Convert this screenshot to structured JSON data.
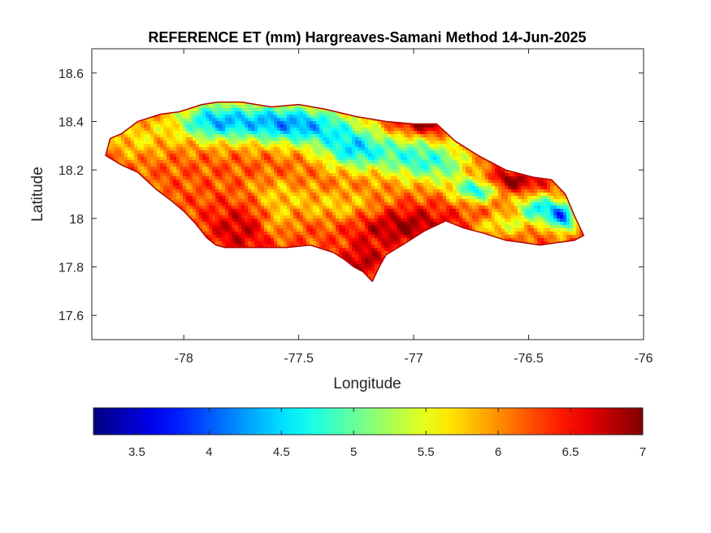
{
  "chart_data": {
    "type": "heatmap",
    "title": "REFERENCE ET (mm) Hargreaves-Samani Method  14-Jun-2025",
    "xlabel": "Longitude",
    "ylabel": "Latitude",
    "xlim": [
      -78.4,
      -76
    ],
    "ylim": [
      17.5,
      18.7
    ],
    "xticks": [
      -78,
      -77.5,
      -77,
      -76.5,
      -76
    ],
    "xtick_labels": [
      "-78",
      "-77.5",
      "-77",
      "-76.5",
      "-76"
    ],
    "yticks": [
      17.6,
      17.8,
      18,
      18.2,
      18.4,
      18.6
    ],
    "ytick_labels": [
      "17.6",
      "17.8",
      "18",
      "18.2",
      "18.4",
      "18.6"
    ],
    "grid": false,
    "colormap": "jet",
    "colorbar": {
      "orientation": "horizontal",
      "placement": "bottom",
      "range": [
        3.2,
        7
      ],
      "ticks": [
        3.5,
        4,
        4.5,
        5,
        5.5,
        6,
        6.5,
        7
      ],
      "tick_labels": [
        "3.5",
        "4",
        "4.5",
        "5",
        "5.5",
        "6",
        "6.5",
        "7"
      ]
    },
    "outline": [
      [
        -78.34,
        18.26
      ],
      [
        -78.32,
        18.33
      ],
      [
        -78.27,
        18.35
      ],
      [
        -78.2,
        18.4
      ],
      [
        -78.1,
        18.43
      ],
      [
        -78.02,
        18.44
      ],
      [
        -77.92,
        18.47
      ],
      [
        -77.85,
        18.48
      ],
      [
        -77.75,
        18.48
      ],
      [
        -77.62,
        18.46
      ],
      [
        -77.5,
        18.47
      ],
      [
        -77.38,
        18.45
      ],
      [
        -77.25,
        18.42
      ],
      [
        -77.12,
        18.4
      ],
      [
        -77.0,
        18.39
      ],
      [
        -76.9,
        18.39
      ],
      [
        -76.82,
        18.32
      ],
      [
        -76.72,
        18.26
      ],
      [
        -76.6,
        18.2
      ],
      [
        -76.48,
        18.17
      ],
      [
        -76.4,
        18.16
      ],
      [
        -76.34,
        18.1
      ],
      [
        -76.3,
        18.01
      ],
      [
        -76.26,
        17.93
      ],
      [
        -76.3,
        17.91
      ],
      [
        -76.38,
        17.9
      ],
      [
        -76.45,
        17.89
      ],
      [
        -76.52,
        17.9
      ],
      [
        -76.6,
        17.91
      ],
      [
        -76.7,
        17.94
      ],
      [
        -76.78,
        17.96
      ],
      [
        -76.86,
        17.99
      ],
      [
        -76.95,
        17.95
      ],
      [
        -77.05,
        17.89
      ],
      [
        -77.12,
        17.85
      ],
      [
        -77.15,
        17.8
      ],
      [
        -77.18,
        17.74
      ],
      [
        -77.22,
        17.78
      ],
      [
        -77.26,
        17.8
      ],
      [
        -77.3,
        17.83
      ],
      [
        -77.35,
        17.86
      ],
      [
        -77.45,
        17.89
      ],
      [
        -77.55,
        17.88
      ],
      [
        -77.65,
        17.88
      ],
      [
        -77.75,
        17.88
      ],
      [
        -77.82,
        17.88
      ],
      [
        -77.86,
        17.89
      ],
      [
        -77.9,
        17.92
      ],
      [
        -77.95,
        17.98
      ],
      [
        -78.0,
        18.03
      ],
      [
        -78.05,
        18.07
      ],
      [
        -78.12,
        18.12
      ],
      [
        -78.2,
        18.19
      ],
      [
        -78.27,
        18.22
      ]
    ],
    "field": {
      "base": 6.2,
      "features": [
        {
          "lon": -77.25,
          "lat": 18.28,
          "amp": -1.5,
          "sx": 0.11,
          "sy": 0.06
        },
        {
          "lon": -77.45,
          "lat": 18.38,
          "amp": -1.3,
          "sx": 0.16,
          "sy": 0.06
        },
        {
          "lon": -77.7,
          "lat": 18.4,
          "amp": -1.3,
          "sx": 0.18,
          "sy": 0.06
        },
        {
          "lon": -77.9,
          "lat": 18.4,
          "amp": -1.0,
          "sx": 0.1,
          "sy": 0.06
        },
        {
          "lon": -78.2,
          "lat": 18.33,
          "amp": -0.5,
          "sx": 0.1,
          "sy": 0.06
        },
        {
          "lon": -77.0,
          "lat": 18.25,
          "amp": -1.2,
          "sx": 0.1,
          "sy": 0.07
        },
        {
          "lon": -76.85,
          "lat": 18.22,
          "amp": -0.8,
          "sx": 0.08,
          "sy": 0.06
        },
        {
          "lon": -76.72,
          "lat": 18.12,
          "amp": -1.7,
          "sx": 0.07,
          "sy": 0.035
        },
        {
          "lon": -76.45,
          "lat": 18.04,
          "amp": -1.6,
          "sx": 0.07,
          "sy": 0.04
        },
        {
          "lon": -76.35,
          "lat": 18.0,
          "amp": -1.8,
          "sx": 0.04,
          "sy": 0.04
        },
        {
          "lon": -76.62,
          "lat": 17.97,
          "amp": -0.7,
          "sx": 0.08,
          "sy": 0.03
        },
        {
          "lon": -77.3,
          "lat": 18.05,
          "amp": -0.5,
          "sx": 0.15,
          "sy": 0.05
        },
        {
          "lon": -77.6,
          "lat": 18.1,
          "amp": -0.4,
          "sx": 0.1,
          "sy": 0.05
        },
        {
          "lon": -76.95,
          "lat": 18.4,
          "amp": 1.0,
          "sx": 0.1,
          "sy": 0.04
        },
        {
          "lon": -76.6,
          "lat": 18.15,
          "amp": 0.9,
          "sx": 0.1,
          "sy": 0.03
        },
        {
          "lon": -77.05,
          "lat": 17.97,
          "amp": 0.7,
          "sx": 0.16,
          "sy": 0.06
        },
        {
          "lon": -77.22,
          "lat": 17.82,
          "amp": 0.6,
          "sx": 0.06,
          "sy": 0.05
        },
        {
          "lon": -77.75,
          "lat": 17.95,
          "amp": 0.5,
          "sx": 0.12,
          "sy": 0.08
        },
        {
          "lon": -77.6,
          "lat": 17.98,
          "amp": -0.5,
          "sx": 0.05,
          "sy": 0.05
        }
      ]
    }
  }
}
